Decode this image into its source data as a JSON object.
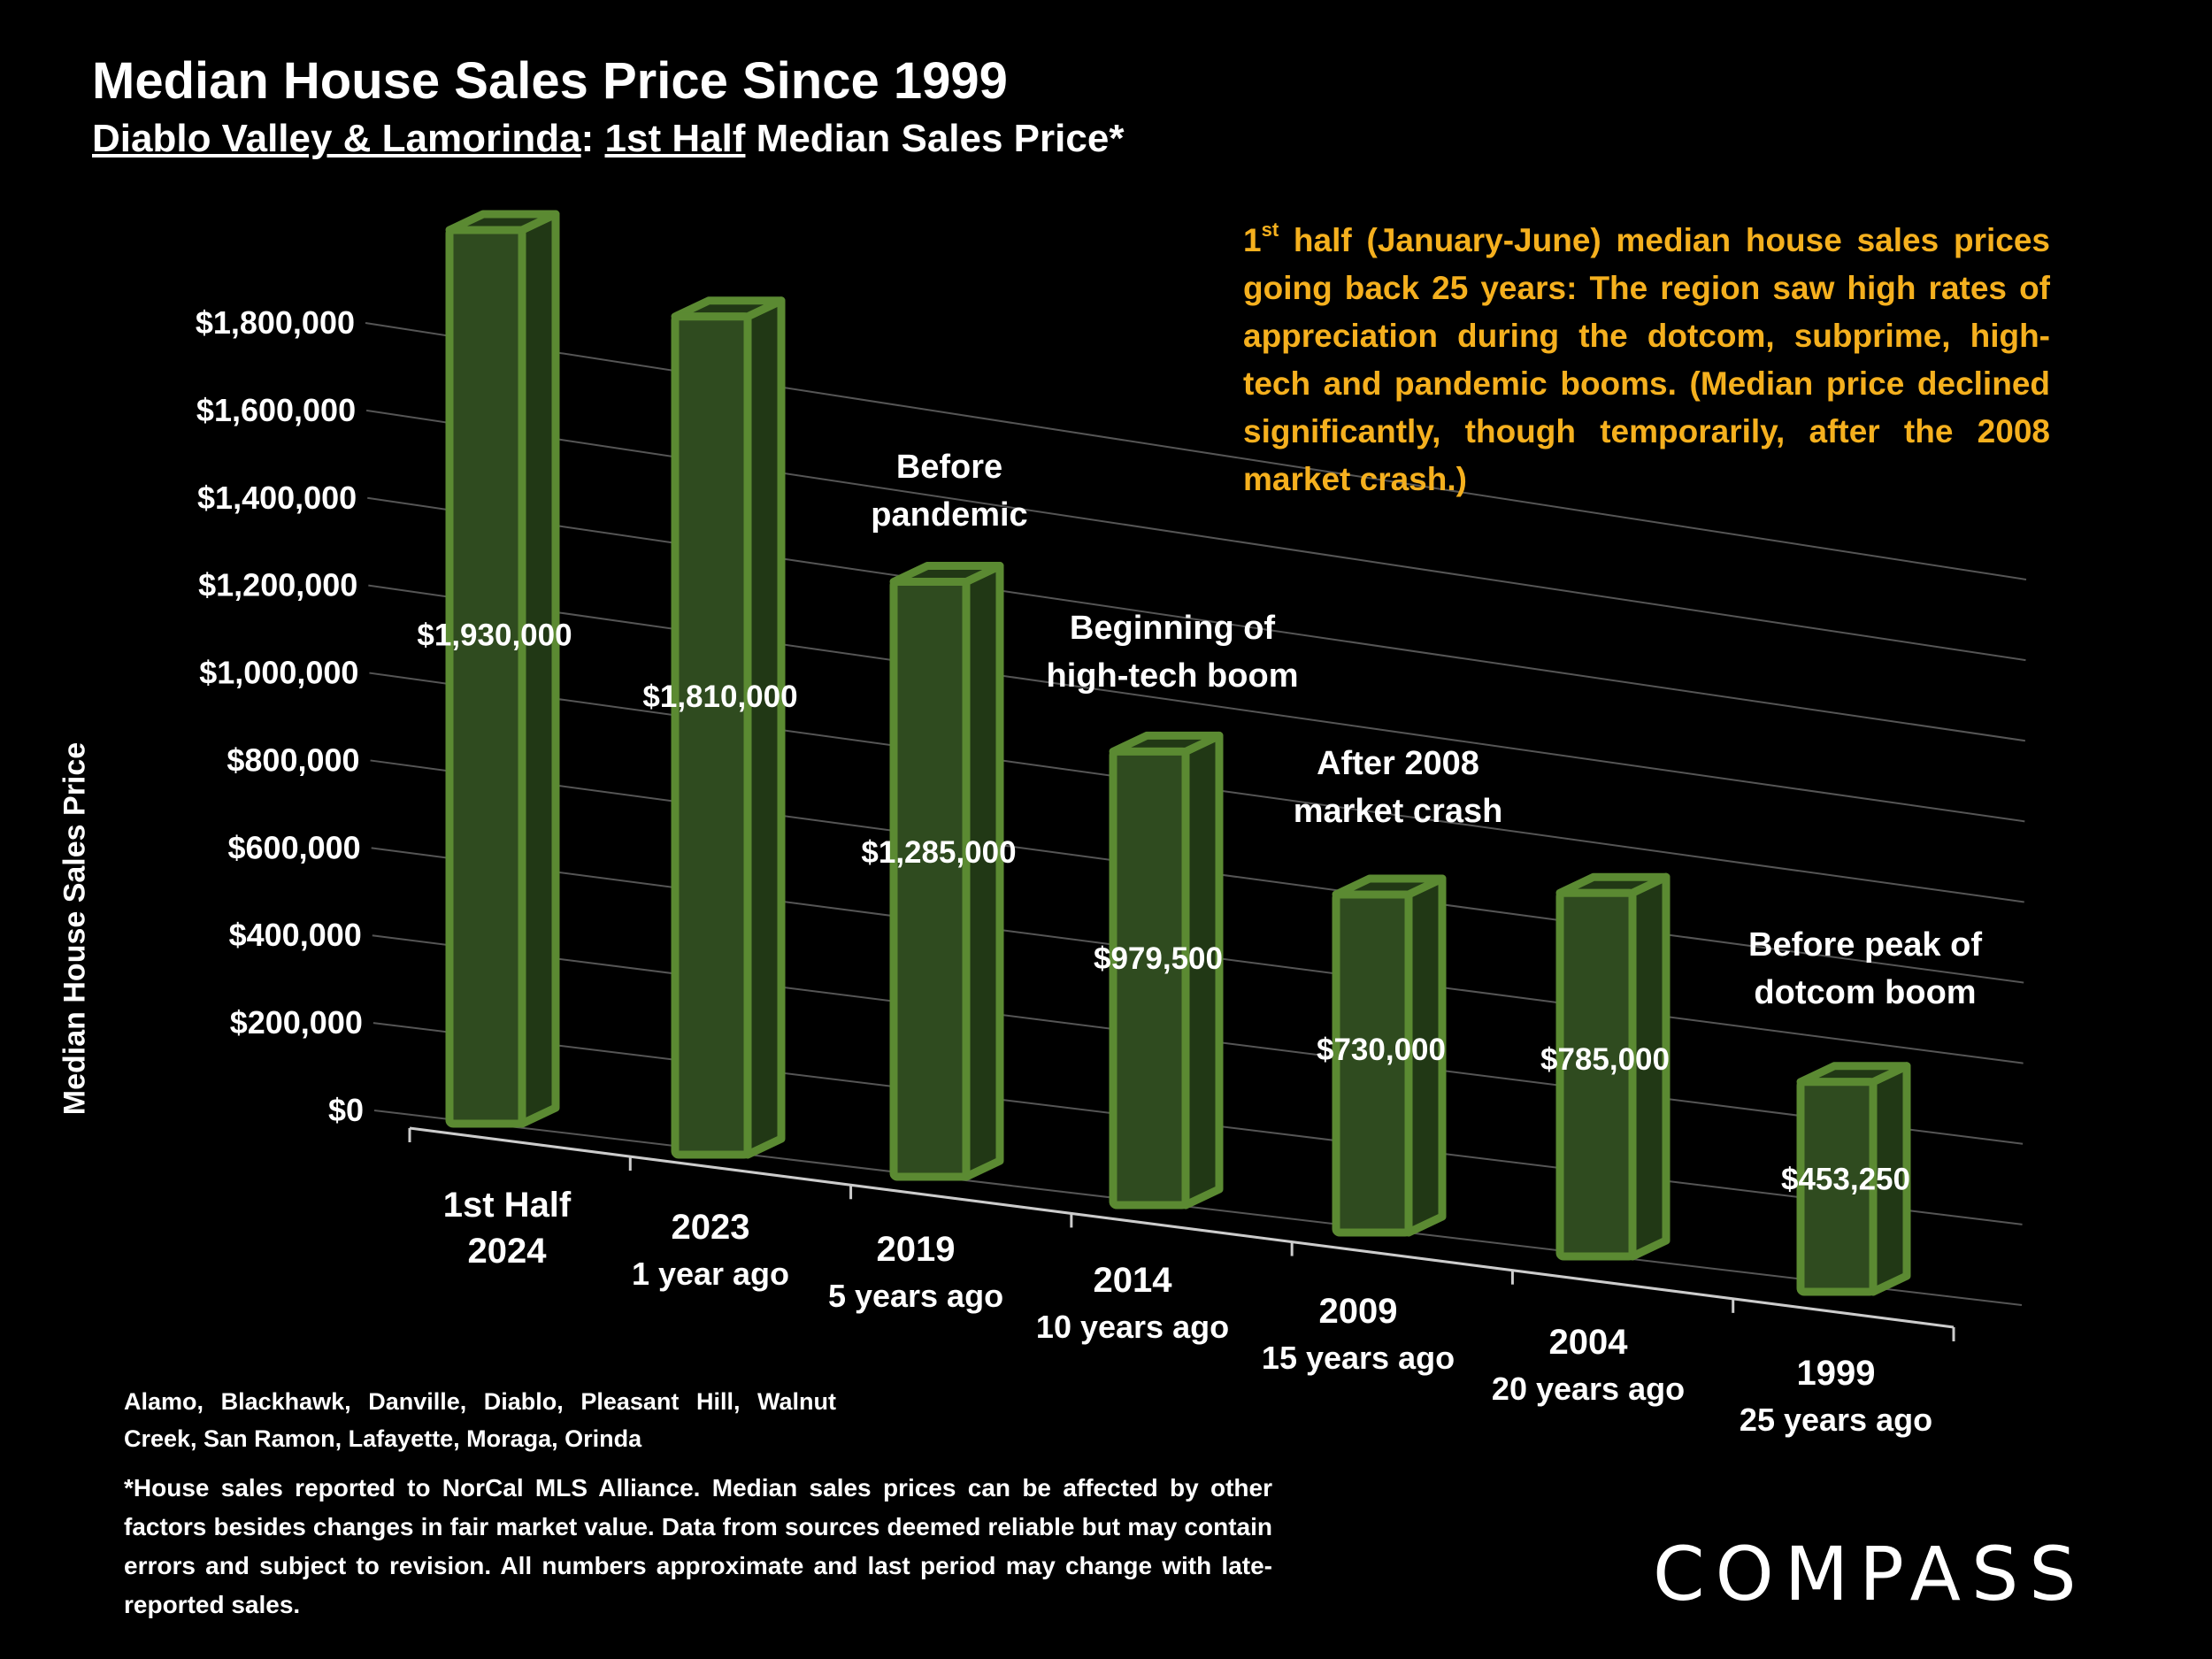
{
  "title": "Median House Sales Price Since 1999",
  "subtitle": {
    "part1": "Diablo Valley & Lamorinda",
    "sep": ":  ",
    "part2": "1st Half",
    "part3": " Median Sales Price*"
  },
  "callout": {
    "sup": "st",
    "lead": "1",
    "text": " half (January-June) median house sales prices going back 25 years:  The region saw high rates of appreciation during the dotcom, subprime, high-tech and pandemic booms. (Median price declined significantly, though  temporarily, after the 2008 market crash.)"
  },
  "regions": "Alamo, Blackhawk, Danville, Diablo, Pleasant Hill, Walnut Creek, San Ramon, Lafayette, Moraga, Orinda",
  "footnote": "*House sales reported to NorCal MLS Alliance. Median sales prices can be affected by other factors besides changes in fair market value. Data from sources deemed reliable but may contain errors and subject to revision. All numbers  approximate and last period may change with late-reported sales.",
  "logo": "COMPASS",
  "colors": {
    "bar_front": "#2f4b1f",
    "bar_side": "#213815",
    "bar_edge": "#5b8a32",
    "callout": "#f5b01e",
    "background": "#000000"
  },
  "chart_data": {
    "type": "bar",
    "ylabel": "Median House Sales Price",
    "ylim": [
      0,
      1800000
    ],
    "yticks": [
      "$0",
      "$200,000",
      "$400,000",
      "$600,000",
      "$800,000",
      "$1,000,000",
      "$1,200,000",
      "$1,400,000",
      "$1,600,000",
      "$1,800,000"
    ],
    "ytick_values": [
      0,
      200000,
      400000,
      600000,
      800000,
      1000000,
      1200000,
      1400000,
      1600000,
      1800000
    ],
    "categories": [
      {
        "line1": "1st Half",
        "line2": "2024"
      },
      {
        "line1": "2023",
        "line2": "1 year ago"
      },
      {
        "line1": "2019",
        "line2": "5 years ago"
      },
      {
        "line1": "2014",
        "line2": "10 years ago"
      },
      {
        "line1": "2009",
        "line2": "15 years ago"
      },
      {
        "line1": "2004",
        "line2": "20 years ago"
      },
      {
        "line1": "1999",
        "line2": "25 years ago"
      }
    ],
    "values": [
      1930000,
      1810000,
      1285000,
      979500,
      730000,
      785000,
      453250
    ],
    "value_labels": [
      "$1,930,000",
      "$1,810,000",
      "$1,285,000",
      "$979,500",
      "$730,000",
      "$785,000",
      "$453,250"
    ],
    "annotations": [
      {
        "bar_index": 2,
        "line1": "Before",
        "line2": "pandemic"
      },
      {
        "bar_index": 3,
        "line1": "Beginning of",
        "line2": "high-tech boom"
      },
      {
        "bar_index": 4,
        "line1": "After 2008",
        "line2": "market crash"
      },
      {
        "bar_index": 6,
        "line1": "Before peak of",
        "line2": "dotcom boom"
      }
    ],
    "grid": true,
    "style": "3d-perspective"
  }
}
